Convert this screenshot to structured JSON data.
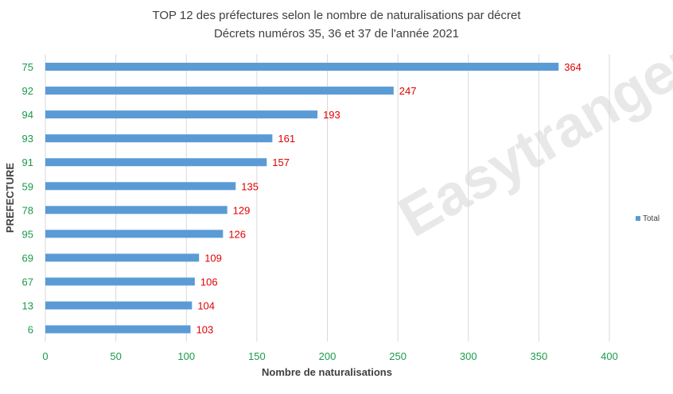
{
  "chart_data": {
    "type": "bar",
    "orientation": "horizontal",
    "title": "TOP 12 des préfectures selon le nombre de naturalisations par décret",
    "subtitle": "Décrets numéros 35, 36 et 37 de l'année 2021",
    "xlabel": "Nombre de naturalisations",
    "ylabel": "PREFECTURE",
    "xlim": [
      0,
      400
    ],
    "xticks": [
      0,
      50,
      100,
      150,
      200,
      250,
      300,
      350,
      400
    ],
    "categories": [
      "75",
      "92",
      "94",
      "93",
      "91",
      "59",
      "78",
      "95",
      "69",
      "67",
      "13",
      "6"
    ],
    "series": [
      {
        "name": "Total",
        "values": [
          364,
          247,
          193,
          161,
          157,
          135,
          129,
          126,
          109,
          106,
          104,
          103
        ]
      }
    ],
    "grid": true,
    "legend": "right",
    "colors": {
      "bar": "#5b9bd5",
      "value_label": "#e00000",
      "tick_label": "#1a9a4a"
    }
  },
  "watermark": "Easytranger"
}
